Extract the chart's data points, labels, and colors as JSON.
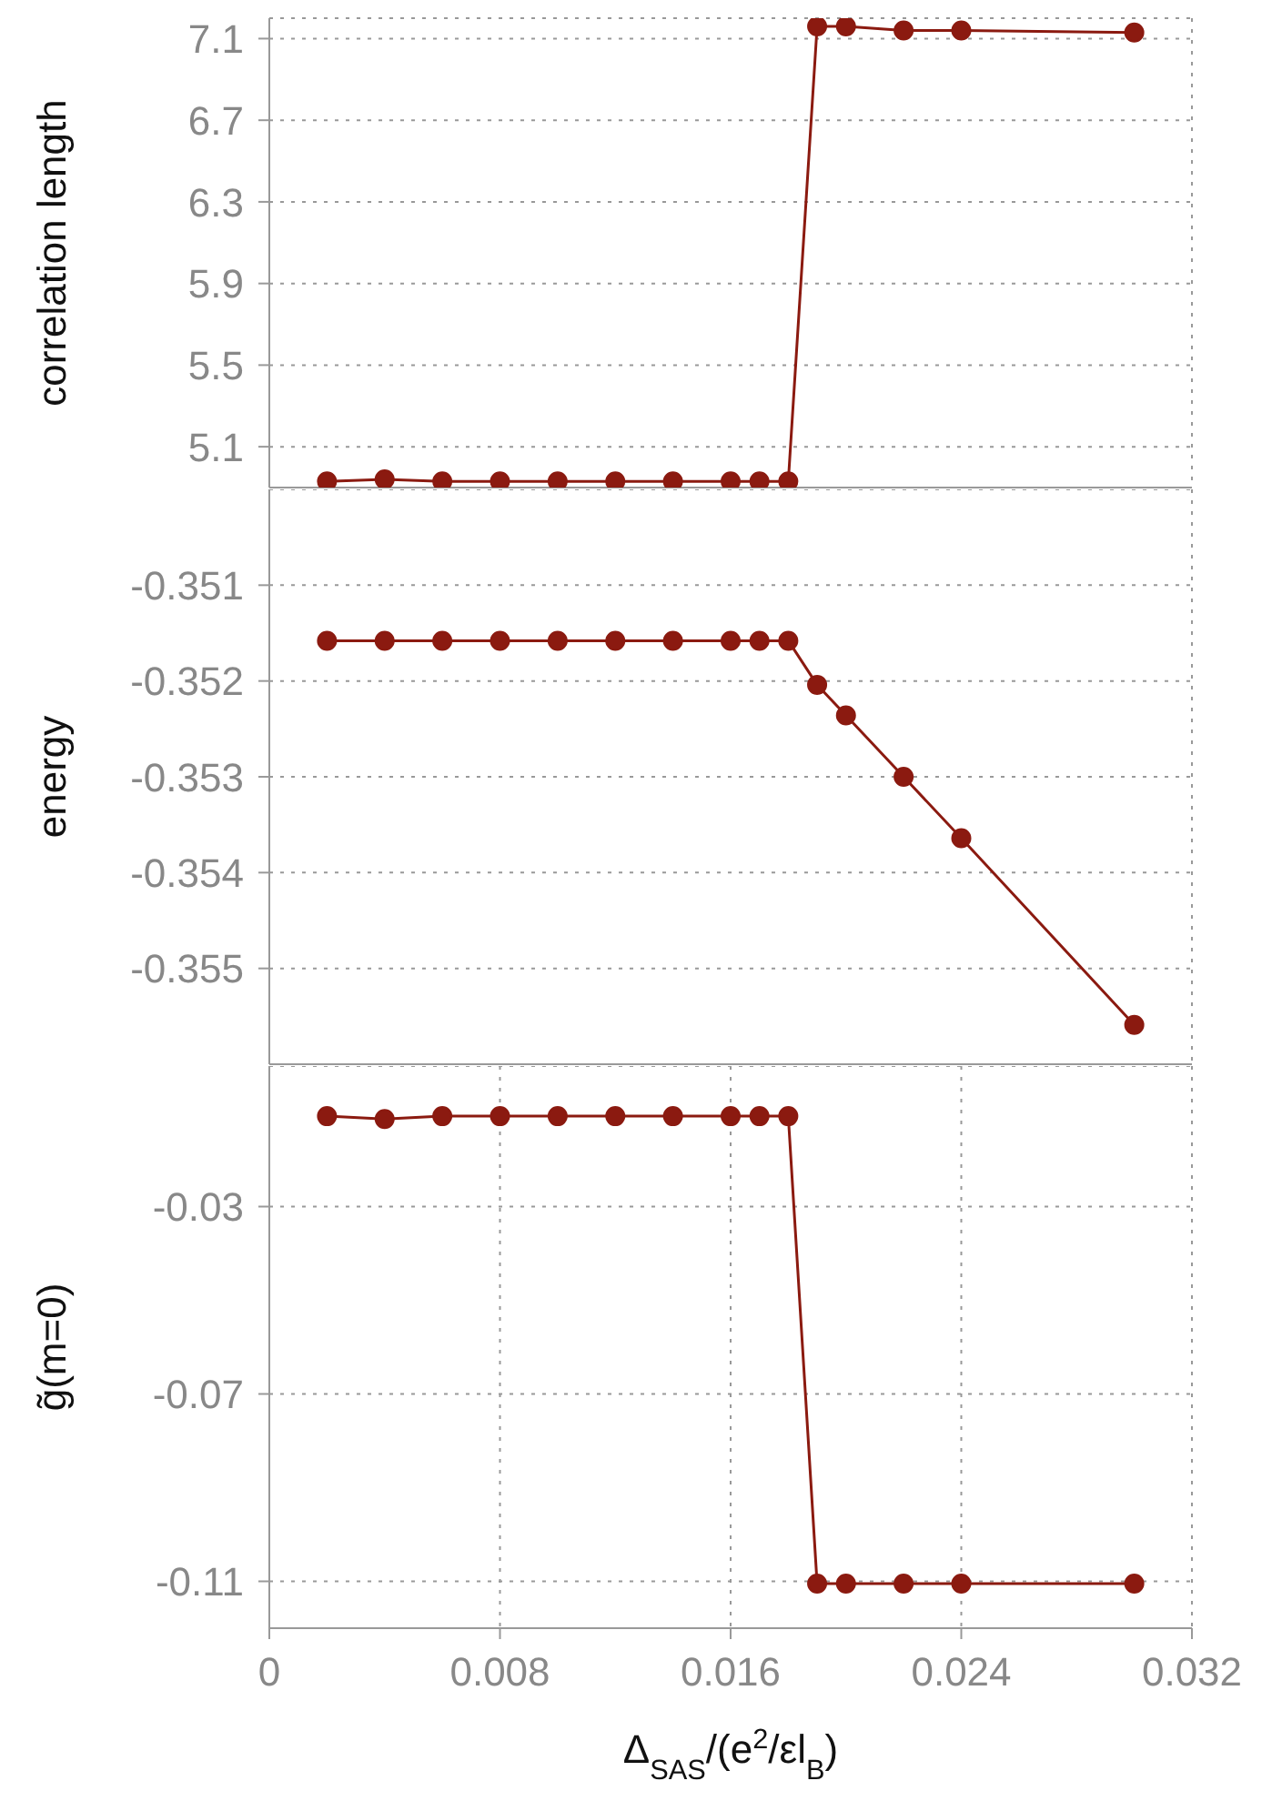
{
  "chart_data": [
    {
      "type": "line",
      "ylabel": "correlation length",
      "x": [
        0.002,
        0.004,
        0.006,
        0.008,
        0.01,
        0.012,
        0.014,
        0.016,
        0.017,
        0.018,
        0.019,
        0.02,
        0.022,
        0.024,
        0.03
      ],
      "series": [
        {
          "color": "#8b1a10",
          "values": [
            4.93,
            4.94,
            4.93,
            4.93,
            4.93,
            4.93,
            4.93,
            4.93,
            4.93,
            4.93,
            7.16,
            7.16,
            7.14,
            7.14,
            7.13
          ]
        }
      ],
      "xlim": [
        0,
        0.032
      ],
      "xticks": [
        0,
        0.008,
        0.016,
        0.024,
        0.032
      ],
      "ylim": [
        4.9,
        7.2
      ],
      "yticks": [
        5.1,
        5.5,
        5.9,
        6.3,
        6.7,
        7.1
      ],
      "grid": true,
      "marker": "circle",
      "tick_labels": "y",
      "legend": false
    },
    {
      "type": "line",
      "ylabel": "energy",
      "x": [
        0.002,
        0.004,
        0.006,
        0.008,
        0.01,
        0.012,
        0.014,
        0.016,
        0.017,
        0.018,
        0.019,
        0.02,
        0.022,
        0.024,
        0.03
      ],
      "series": [
        {
          "color": "#8b1a10",
          "values": [
            -0.35158,
            -0.35158,
            -0.35158,
            -0.35158,
            -0.35158,
            -0.35158,
            -0.35158,
            -0.35158,
            -0.35158,
            -0.35158,
            -0.35204,
            -0.35236,
            -0.353,
            -0.35364,
            -0.35559
          ]
        }
      ],
      "xlim": [
        0,
        0.032
      ],
      "xticks": [
        0,
        0.008,
        0.016,
        0.024,
        0.032
      ],
      "ylim": [
        -0.356,
        -0.35
      ],
      "yticks": [
        -0.355,
        -0.354,
        -0.353,
        -0.352,
        -0.351
      ],
      "grid": true,
      "marker": "circle",
      "tick_labels": "y",
      "legend": false
    },
    {
      "type": "line",
      "ylabel": "g̃(m=0)",
      "xlabel": "Δ$_{SAS}$/(e$^{2}$/εl$_{B}$)",
      "x": [
        0.002,
        0.004,
        0.006,
        0.008,
        0.01,
        0.012,
        0.014,
        0.016,
        0.017,
        0.018,
        0.019,
        0.02,
        0.022,
        0.024,
        0.03
      ],
      "series": [
        {
          "color": "#8b1a10",
          "values": [
            -0.0107,
            -0.0113,
            -0.0107,
            -0.0107,
            -0.0107,
            -0.0107,
            -0.0107,
            -0.0107,
            -0.0107,
            -0.0107,
            -0.1105,
            -0.1105,
            -0.1105,
            -0.1105,
            -0.1105
          ]
        }
      ],
      "xlim": [
        0,
        0.032
      ],
      "xticks": [
        0,
        0.008,
        0.016,
        0.024,
        0.032
      ],
      "ylim": [
        -0.12,
        0
      ],
      "yticks": [
        -0.11,
        -0.07,
        -0.03
      ],
      "grid": true,
      "marker": "circle",
      "legend": false
    }
  ]
}
